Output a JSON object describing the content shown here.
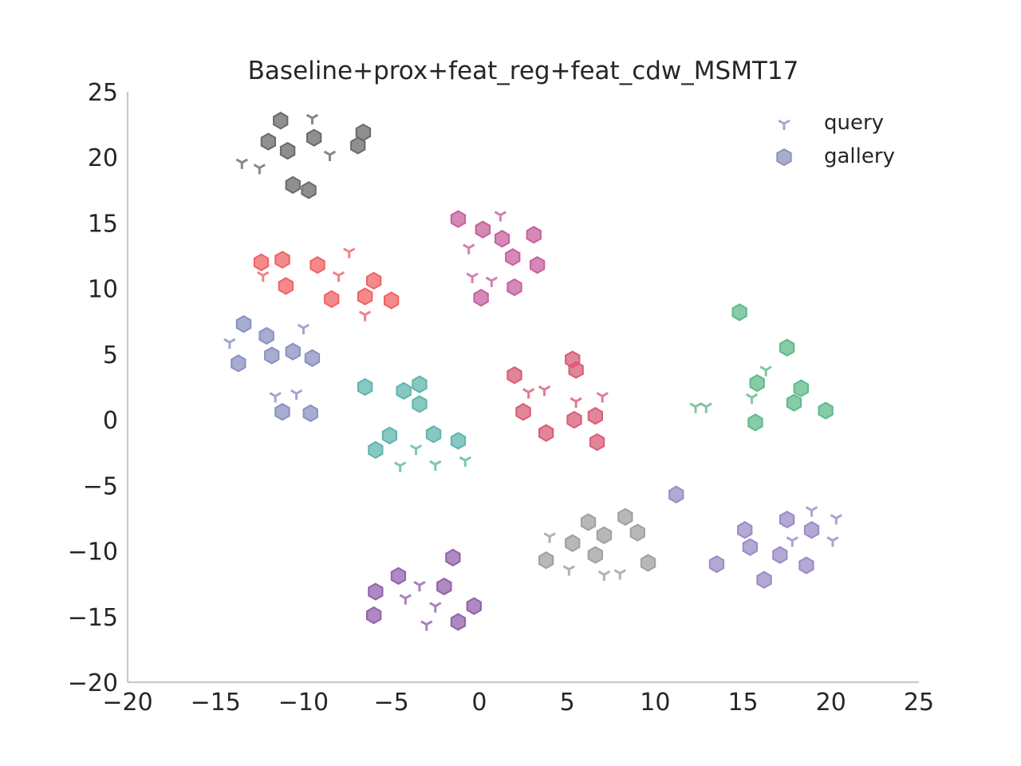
{
  "chart_data": {
    "type": "scatter",
    "title": "Baseline+prox+feat_reg+feat_cdw_MSMT17",
    "xlabel": "",
    "ylabel": "",
    "xlim": [
      -20,
      25
    ],
    "ylim": [
      -20,
      25
    ],
    "xticks": [
      "−20",
      "−15",
      "−10",
      "−5",
      "0",
      "5",
      "10",
      "15",
      "20",
      "25"
    ],
    "yticks": [
      "−20",
      "−15",
      "−10",
      "−5",
      "0",
      "5",
      "10",
      "15",
      "20",
      "25"
    ],
    "xtick_values": [
      -20,
      -15,
      -10,
      -5,
      0,
      5,
      10,
      15,
      20,
      25
    ],
    "ytick_values": [
      -20,
      -15,
      -10,
      -5,
      0,
      5,
      10,
      15,
      20,
      25
    ],
    "grid": false,
    "legend": {
      "position": "top-right",
      "entries": [
        {
          "label": "query",
          "marker": "tri-down",
          "color": "#8c93bf"
        },
        {
          "label": "gallery",
          "marker": "hexagon",
          "color": "#8c93bf"
        }
      ]
    },
    "clusters": [
      {
        "color": "#6a6a6a",
        "query": [
          [
            -9.5,
            23.0
          ],
          [
            -13.5,
            19.6
          ],
          [
            -12.5,
            19.2
          ],
          [
            -8.5,
            20.2
          ]
        ],
        "gallery": [
          [
            -11.3,
            22.8
          ],
          [
            -12.0,
            21.2
          ],
          [
            -10.9,
            20.5
          ],
          [
            -9.4,
            21.5
          ],
          [
            -6.6,
            21.9
          ],
          [
            -6.9,
            20.9
          ],
          [
            -10.6,
            17.9
          ],
          [
            -9.7,
            17.5
          ]
        ]
      },
      {
        "color": "#f06363",
        "query": [
          [
            -12.3,
            11.0
          ],
          [
            -8.0,
            11.0
          ],
          [
            -7.4,
            12.8
          ],
          [
            -6.5,
            8.0
          ]
        ],
        "gallery": [
          [
            -12.4,
            12.0
          ],
          [
            -11.2,
            12.2
          ],
          [
            -11.0,
            10.2
          ],
          [
            -9.2,
            11.8
          ],
          [
            -8.4,
            9.2
          ],
          [
            -6.5,
            9.4
          ],
          [
            -6.0,
            10.6
          ],
          [
            -5.0,
            9.1
          ]
        ]
      },
      {
        "color": "#c7619e",
        "query": [
          [
            1.2,
            15.6
          ],
          [
            -0.6,
            13.1
          ],
          [
            -0.4,
            10.9
          ],
          [
            0.7,
            10.6
          ]
        ],
        "gallery": [
          [
            -1.2,
            15.3
          ],
          [
            0.2,
            14.5
          ],
          [
            1.3,
            13.8
          ],
          [
            3.1,
            14.1
          ],
          [
            1.9,
            12.4
          ],
          [
            3.3,
            11.8
          ],
          [
            2.0,
            10.1
          ],
          [
            0.1,
            9.3
          ]
        ]
      },
      {
        "color": "#8990c2",
        "query": [
          [
            -14.2,
            5.9
          ],
          [
            -10.0,
            7.0
          ],
          [
            -11.6,
            1.8
          ],
          [
            -10.4,
            2.0
          ]
        ],
        "gallery": [
          [
            -13.4,
            7.3
          ],
          [
            -12.1,
            6.4
          ],
          [
            -11.8,
            4.9
          ],
          [
            -10.6,
            5.2
          ],
          [
            -9.5,
            4.7
          ],
          [
            -13.7,
            4.3
          ],
          [
            -11.2,
            0.6
          ],
          [
            -9.6,
            0.5
          ]
        ]
      },
      {
        "color": "#5fb5ad",
        "query": [
          [
            -3.6,
            -2.2
          ],
          [
            -4.5,
            -3.5
          ],
          [
            -2.5,
            -3.4
          ],
          [
            -0.8,
            -3.1
          ]
        ],
        "gallery": [
          [
            -6.5,
            2.5
          ],
          [
            -4.3,
            2.2
          ],
          [
            -3.4,
            2.7
          ],
          [
            -3.4,
            1.2
          ],
          [
            -5.1,
            -1.2
          ],
          [
            -5.9,
            -2.3
          ],
          [
            -2.6,
            -1.1
          ],
          [
            -1.2,
            -1.6
          ]
        ]
      },
      {
        "color": "#d95c76",
        "query": [
          [
            2.8,
            2.1
          ],
          [
            3.7,
            2.3
          ],
          [
            5.5,
            1.4
          ],
          [
            7.0,
            1.8
          ]
        ],
        "gallery": [
          [
            2.0,
            3.4
          ],
          [
            5.3,
            4.6
          ],
          [
            5.5,
            3.8
          ],
          [
            2.5,
            0.6
          ],
          [
            5.4,
            0.0
          ],
          [
            6.6,
            0.3
          ],
          [
            3.8,
            -1.0
          ],
          [
            6.7,
            -1.7
          ]
        ]
      },
      {
        "color": "#5fba8a",
        "query": [
          [
            12.3,
            1.0
          ],
          [
            12.9,
            1.0
          ],
          [
            15.5,
            1.7
          ],
          [
            16.3,
            3.8
          ]
        ],
        "gallery": [
          [
            14.8,
            8.2
          ],
          [
            17.5,
            5.5
          ],
          [
            15.8,
            2.8
          ],
          [
            18.3,
            2.4
          ],
          [
            17.9,
            1.3
          ],
          [
            19.7,
            0.7
          ],
          [
            15.7,
            -0.2
          ]
        ]
      },
      {
        "color": "#a0a0a0",
        "query": [
          [
            4.0,
            -8.9
          ],
          [
            5.1,
            -11.4
          ],
          [
            7.1,
            -11.8
          ],
          [
            8.0,
            -11.7
          ]
        ],
        "gallery": [
          [
            6.2,
            -7.8
          ],
          [
            8.3,
            -7.4
          ],
          [
            7.1,
            -8.8
          ],
          [
            9.0,
            -8.6
          ],
          [
            5.3,
            -9.4
          ],
          [
            3.8,
            -10.7
          ],
          [
            6.6,
            -10.3
          ],
          [
            9.6,
            -10.9
          ]
        ]
      },
      {
        "color": "#9b8bc6",
        "query": [
          [
            18.9,
            -6.9
          ],
          [
            20.3,
            -7.5
          ],
          [
            17.8,
            -9.2
          ],
          [
            20.1,
            -9.2
          ]
        ],
        "gallery": [
          [
            11.2,
            -5.7
          ],
          [
            15.1,
            -8.4
          ],
          [
            17.5,
            -7.6
          ],
          [
            18.9,
            -8.4
          ],
          [
            15.4,
            -9.7
          ],
          [
            17.1,
            -10.3
          ],
          [
            13.5,
            -11.0
          ],
          [
            18.6,
            -11.1
          ],
          [
            16.2,
            -12.2
          ]
        ]
      },
      {
        "color": "#9461ad",
        "query": [
          [
            -3.4,
            -12.6
          ],
          [
            -4.2,
            -13.6
          ],
          [
            -2.5,
            -14.2
          ],
          [
            -3.0,
            -15.6
          ]
        ],
        "gallery": [
          [
            -1.5,
            -10.5
          ],
          [
            -4.6,
            -11.9
          ],
          [
            -2.0,
            -12.7
          ],
          [
            -5.9,
            -13.1
          ],
          [
            -0.3,
            -14.2
          ],
          [
            -6.0,
            -14.9
          ],
          [
            -1.2,
            -15.4
          ]
        ]
      }
    ]
  }
}
